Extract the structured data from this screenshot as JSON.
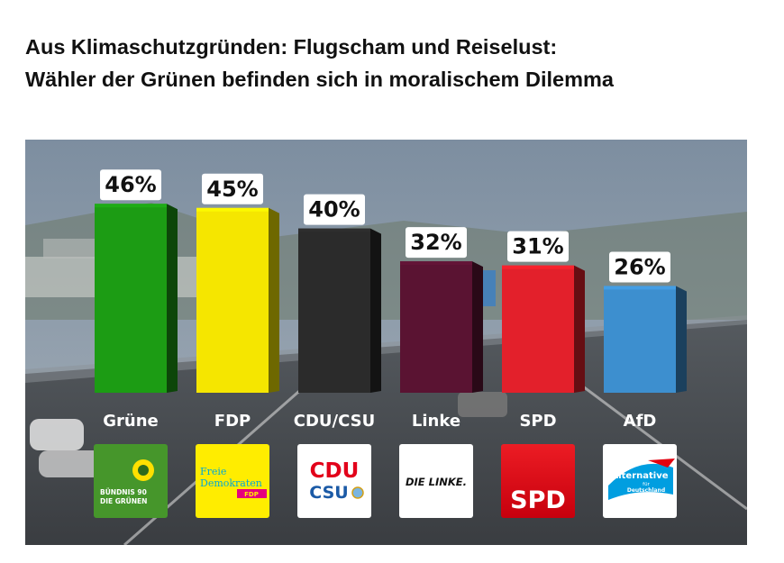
{
  "headline": {
    "line1": "Aus Klimaschutzgründen: Flugscham und Reiselust:",
    "line2": "Wähler der Grünen befinden sich in moralischem Dilemma"
  },
  "chart_data": {
    "type": "bar",
    "title": "",
    "xlabel": "",
    "ylabel": "",
    "ylim": [
      0,
      50
    ],
    "categories": [
      "Grüne",
      "FDP",
      "CDU/CSU",
      "Linke",
      "SPD",
      "AfD"
    ],
    "values": [
      46,
      45,
      40,
      32,
      31,
      26
    ],
    "value_labels": [
      "46%",
      "45%",
      "40%",
      "32%",
      "31%",
      "26%"
    ],
    "colors": [
      "#1c9c14",
      "#f5e600",
      "#2b2b2b",
      "#5a1332",
      "#e3202b",
      "#3d8fcf"
    ],
    "legend": "none",
    "grid": false
  },
  "logos": [
    {
      "icon": "sunflower-icon",
      "text1": "BÜNDNIS 90",
      "text2": "DIE GRÜNEN"
    },
    {
      "icon": "",
      "text1": "Freie",
      "text2": "Demokraten",
      "text3": "FDP"
    },
    {
      "icon": "",
      "text1": "CDU",
      "text2": "CSU"
    },
    {
      "icon": "",
      "text1": "DIE LINKE."
    },
    {
      "icon": "",
      "text1": "SPD"
    },
    {
      "icon": "",
      "text1": "Alternative",
      "text2": "für",
      "text3": "Deutschland"
    }
  ],
  "colors": {
    "road": "#4a4e52",
    "sky": "#8a96a4",
    "label_box": "#ffffff",
    "gruene_green": "#44a631",
    "fdp_yellow": "#ffec00",
    "fdp_magenta": "#e5007d",
    "cdu_red": "#e2001a",
    "cdu_blue": "#1b5aa6",
    "spd_red": "#e3000f",
    "afd_blue": "#009ee0"
  }
}
